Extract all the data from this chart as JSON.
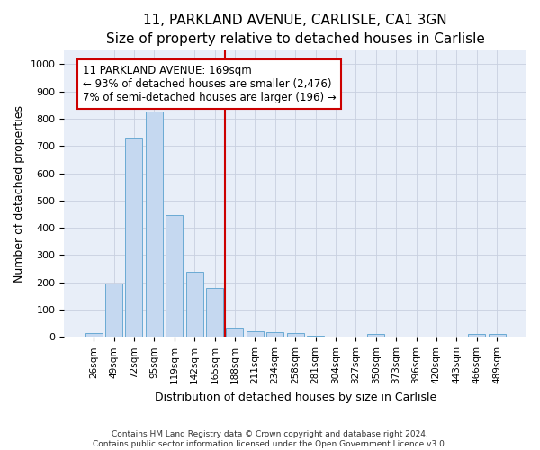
{
  "title1": "11, PARKLAND AVENUE, CARLISLE, CA1 3GN",
  "title2": "Size of property relative to detached houses in Carlisle",
  "xlabel": "Distribution of detached houses by size in Carlisle",
  "ylabel": "Number of detached properties",
  "categories": [
    "26sqm",
    "49sqm",
    "72sqm",
    "95sqm",
    "119sqm",
    "142sqm",
    "165sqm",
    "188sqm",
    "211sqm",
    "234sqm",
    "258sqm",
    "281sqm",
    "304sqm",
    "327sqm",
    "350sqm",
    "373sqm",
    "396sqm",
    "420sqm",
    "443sqm",
    "466sqm",
    "489sqm"
  ],
  "values": [
    15,
    197,
    730,
    825,
    447,
    240,
    181,
    33,
    22,
    18,
    15,
    5,
    0,
    0,
    10,
    0,
    0,
    0,
    0,
    10,
    10
  ],
  "bar_color": "#c5d8f0",
  "bar_edge_color": "#6aaad4",
  "vline_x": 6.5,
  "vline_color": "#cc0000",
  "annotation_text": "11 PARKLAND AVENUE: 169sqm\n← 93% of detached houses are smaller (2,476)\n7% of semi-detached houses are larger (196) →",
  "annotation_box_color": "#ffffff",
  "annotation_box_edge": "#cc0000",
  "ylim": [
    0,
    1050
  ],
  "yticks": [
    0,
    100,
    200,
    300,
    400,
    500,
    600,
    700,
    800,
    900,
    1000
  ],
  "footer_line1": "Contains HM Land Registry data © Crown copyright and database right 2024.",
  "footer_line2": "Contains public sector information licensed under the Open Government Licence v3.0.",
  "bg_color": "#ffffff",
  "plot_bg_color": "#e8eef8",
  "title1_fontsize": 11,
  "title2_fontsize": 10,
  "xlabel_fontsize": 9,
  "ylabel_fontsize": 9
}
